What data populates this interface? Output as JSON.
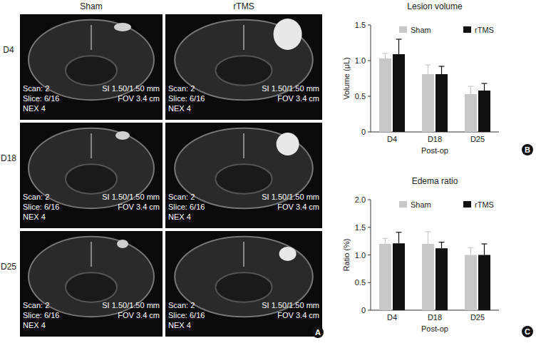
{
  "panel_a": {
    "label": "A",
    "columns": [
      "Sham",
      "rTMS"
    ],
    "rows": [
      "D4",
      "D18",
      "D25"
    ],
    "overlay": {
      "scan": "Scan: 2",
      "si": "SI 1.50/1.50 mm",
      "slice": "Slice: 6/16",
      "fov": "FOV 3.4 cm",
      "nex": "NEX 4"
    }
  },
  "chart_data": [
    {
      "type": "bar",
      "title": "Lesion volume",
      "x_label": "Post-op",
      "y_label": "Volume (μL)",
      "annotations": [
        "B"
      ],
      "categories": [
        "D4",
        "D18",
        "D25"
      ],
      "series": [
        {
          "name": "Sham",
          "color": "#c8c8c8",
          "values": [
            1.03,
            0.81,
            0.53
          ],
          "errors": [
            0.07,
            0.13,
            0.11
          ]
        },
        {
          "name": "rTMS",
          "color": "#111111",
          "values": [
            1.09,
            0.81,
            0.58
          ],
          "errors": [
            0.21,
            0.11,
            0.1
          ]
        }
      ],
      "ylim": [
        0,
        1.5
      ],
      "yticks": [
        0,
        0.5,
        {
          "value": 1,
          "label": "1.0"
        },
        1.5
      ],
      "legend": "top"
    },
    {
      "type": "bar",
      "title": "Edema ratio",
      "x_label": "Post-op",
      "y_label": "Ratio (%)",
      "annotations": [
        "C"
      ],
      "categories": [
        "D4",
        "D18",
        "D25"
      ],
      "series": [
        {
          "name": "Sham",
          "color": "#c8c8c8",
          "values": [
            1.2,
            1.2,
            1.0
          ],
          "errors": [
            0.1,
            0.22,
            0.13
          ]
        },
        {
          "name": "rTMS",
          "color": "#111111",
          "values": [
            1.21,
            1.12,
            1.0
          ],
          "errors": [
            0.2,
            0.11,
            0.2
          ]
        }
      ],
      "ylim": [
        0,
        2
      ],
      "yticks": [
        0,
        0.5,
        {
          "value": 1,
          "label": "1.0"
        },
        1.5,
        {
          "value": 2,
          "label": "2.0"
        }
      ],
      "legend": "top"
    }
  ]
}
